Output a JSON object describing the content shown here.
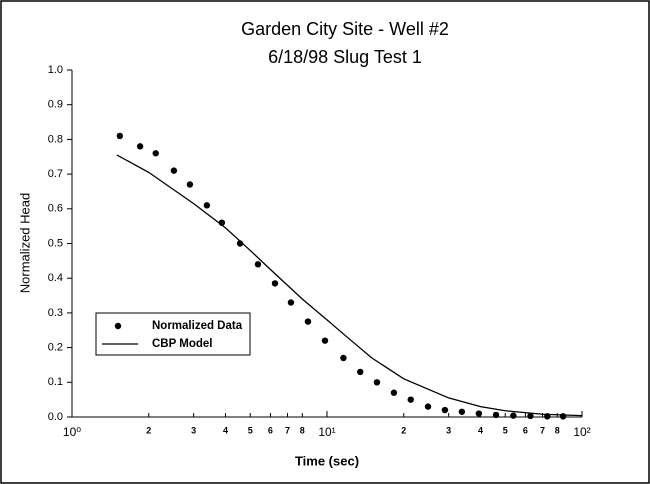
{
  "chart_data": {
    "type": "line",
    "title": "Garden City Site - Well #2",
    "subtitle": "6/18/98 Slug Test 1",
    "xlabel": "Time (sec)",
    "ylabel": "Normalized Head",
    "xscale": "log",
    "xlim": [
      1,
      100
    ],
    "ylim": [
      0,
      1
    ],
    "xticks": [
      {
        "value": 1,
        "label": "10⁰"
      },
      2,
      3,
      4,
      5,
      6,
      7,
      8,
      {
        "value": 10,
        "label": "10¹"
      },
      {
        "value": 20,
        "label": "2"
      },
      {
        "value": 30,
        "label": "3"
      },
      {
        "value": 40,
        "label": "4"
      },
      {
        "value": 50,
        "label": "5"
      },
      {
        "value": 60,
        "label": "6"
      },
      {
        "value": 70,
        "label": "7"
      },
      {
        "value": 80,
        "label": "8"
      },
      {
        "value": 100,
        "label": "10²"
      }
    ],
    "yticks": [
      {
        "value": 0,
        "label": "0.0"
      },
      0.1,
      0.2,
      0.3,
      0.4,
      0.5,
      0.6,
      0.7,
      0.8,
      0.9,
      {
        "value": 1,
        "label": "1.0"
      }
    ],
    "grid": false,
    "legend": "lower left",
    "series": [
      {
        "name": "Normalized Data",
        "style": "markers",
        "color": "#000000",
        "x": [
          1.54,
          1.85,
          2.13,
          2.51,
          2.9,
          3.38,
          3.87,
          4.56,
          5.36,
          6.25,
          7.22,
          8.42,
          9.82,
          11.6,
          13.5,
          15.7,
          18.3,
          21.3,
          24.9,
          29.0,
          33.8,
          39.4,
          46.0,
          53.8,
          62.8,
          73.1,
          84.3
        ],
        "values": [
          0.81,
          0.78,
          0.76,
          0.71,
          0.67,
          0.61,
          0.56,
          0.5,
          0.44,
          0.385,
          0.33,
          0.275,
          0.22,
          0.17,
          0.13,
          0.1,
          0.07,
          0.05,
          0.03,
          0.02,
          0.015,
          0.01,
          0.006,
          0.004,
          0.003,
          0.002,
          0.002
        ]
      },
      {
        "name": "CBP Model",
        "style": "line",
        "color": "#000000",
        "x": [
          1.5,
          2,
          3,
          4,
          5,
          6,
          8,
          10,
          12,
          15,
          20,
          30,
          40,
          50,
          70,
          100
        ],
        "values": [
          0.755,
          0.705,
          0.615,
          0.545,
          0.48,
          0.425,
          0.34,
          0.28,
          0.23,
          0.17,
          0.11,
          0.055,
          0.03,
          0.018,
          0.008,
          0.004
        ]
      }
    ]
  }
}
